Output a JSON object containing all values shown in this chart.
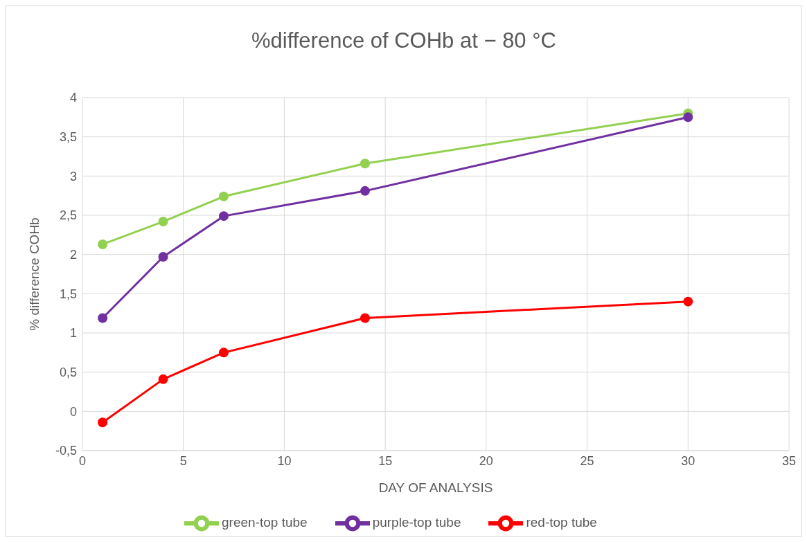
{
  "chart_data": {
    "type": "line",
    "title": "%difference of COHb at − 80 °C",
    "xlabel": "DAY OF ANALYSIS",
    "ylabel": "% difference COHb",
    "x": [
      1,
      4,
      7,
      14,
      30
    ],
    "series": [
      {
        "name": "red-top tube",
        "color": "#ff0000",
        "values": [
          -0.14,
          0.41,
          0.75,
          1.19,
          1.4
        ]
      },
      {
        "name": "purple-top tube",
        "color": "#7030a0",
        "values": [
          1.19,
          1.97,
          2.49,
          2.81,
          3.75
        ]
      },
      {
        "name": "green-top tube",
        "color": "#92d050",
        "values": [
          2.13,
          2.42,
          2.74,
          3.16,
          3.8
        ]
      }
    ],
    "xlim": [
      0,
      35
    ],
    "xticks": [
      0,
      5,
      10,
      15,
      20,
      25,
      30,
      35
    ],
    "ylim": [
      -0.5,
      4
    ],
    "yticks": [
      {
        "value": -0.5,
        "label": "-0,5"
      },
      0,
      {
        "value": 0.5,
        "label": "0,5"
      },
      1,
      {
        "value": 1.5,
        "label": "1,5"
      },
      2,
      {
        "value": 2.5,
        "label": "2,5"
      },
      3,
      {
        "value": 3.5,
        "label": "3,5"
      },
      4
    ],
    "grid": true,
    "legend": "bottom",
    "marker": "circle",
    "line_style": "solid"
  }
}
